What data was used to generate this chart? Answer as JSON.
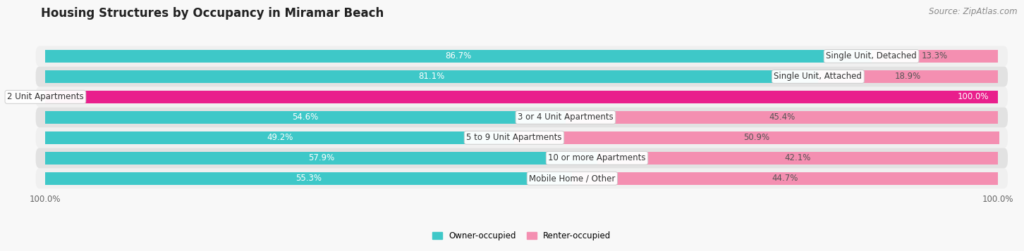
{
  "title": "Housing Structures by Occupancy in Miramar Beach",
  "source": "Source: ZipAtlas.com",
  "categories": [
    "Single Unit, Detached",
    "Single Unit, Attached",
    "2 Unit Apartments",
    "3 or 4 Unit Apartments",
    "5 to 9 Unit Apartments",
    "10 or more Apartments",
    "Mobile Home / Other"
  ],
  "owner_pct": [
    86.7,
    81.1,
    0.0,
    54.6,
    49.2,
    57.9,
    55.3
  ],
  "renter_pct": [
    13.3,
    18.9,
    100.0,
    45.4,
    50.9,
    42.1,
    44.7
  ],
  "owner_color": "#3ec8c8",
  "renter_color": "#f48fb1",
  "renter_color_2unit": "#e91e8c",
  "owner_label": "Owner-occupied",
  "renter_label": "Renter-occupied",
  "bar_height": 0.62,
  "row_bg_light": "#f0f0f0",
  "row_bg_dark": "#e2e2e2",
  "plot_bg": "#f8f8f8",
  "title_fontsize": 12,
  "label_fontsize": 8.5,
  "pct_fontsize": 8.5,
  "source_fontsize": 8.5,
  "axis_label_fontsize": 8.5,
  "total_width": 100
}
